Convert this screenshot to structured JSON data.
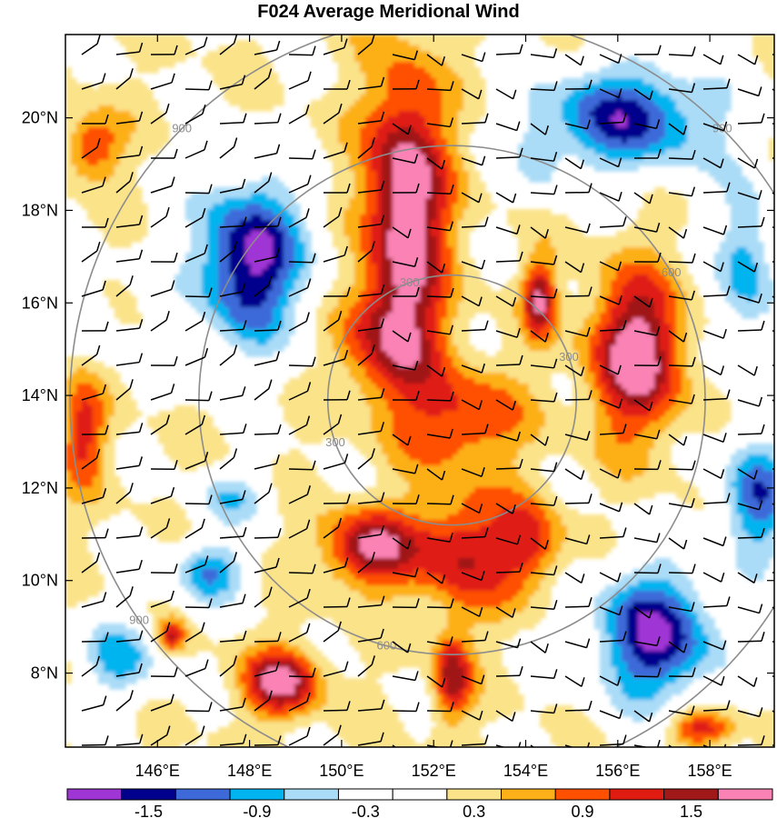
{
  "title": "F024 Average Meridional Wind",
  "map": {
    "lon_range": [
      144,
      159.4
    ],
    "lat_range": [
      6.4,
      21.8
    ],
    "lat_ticks": [
      {
        "value": 20,
        "label": "20°N"
      },
      {
        "value": 18,
        "label": "18°N"
      },
      {
        "value": 16,
        "label": "16°N"
      },
      {
        "value": 14,
        "label": "14°N"
      },
      {
        "value": 12,
        "label": "12°N"
      },
      {
        "value": 10,
        "label": "10°N"
      },
      {
        "value": 8,
        "label": "8°N"
      }
    ],
    "lon_ticks": [
      {
        "value": 146,
        "label": "146°E"
      },
      {
        "value": 148,
        "label": "148°E"
      },
      {
        "value": 150,
        "label": "150°E"
      },
      {
        "value": 152,
        "label": "152°E"
      },
      {
        "value": 154,
        "label": "154°E"
      },
      {
        "value": 156,
        "label": "156°E"
      },
      {
        "value": 158,
        "label": "158°E"
      }
    ],
    "range_rings": {
      "center": {
        "lon": 152.4,
        "lat": 13.9
      },
      "rings": [
        {
          "radius_deg": 2.7,
          "label": "300"
        },
        {
          "radius_deg": 5.5,
          "label": "600"
        },
        {
          "radius_deg": 8.3,
          "label": "900"
        }
      ],
      "ring_color": "#8c8c8c"
    },
    "wind_field": {
      "base_color": "#ffffff",
      "blobs": [
        {
          "lon": 151.4,
          "lat": 18.2,
          "amp": 1.9,
          "sx": 0.9,
          "sy": 2.8
        },
        {
          "lon": 151.0,
          "lat": 15.2,
          "amp": 1.1,
          "sx": 1.1,
          "sy": 1.3
        },
        {
          "lon": 152.6,
          "lat": 13.5,
          "amp": 1.0,
          "sx": 1.3,
          "sy": 1.1
        },
        {
          "lon": 150.6,
          "lat": 10.7,
          "amp": 1.55,
          "sx": 1.0,
          "sy": 0.8
        },
        {
          "lon": 152.6,
          "lat": 10.6,
          "amp": 1.2,
          "sx": 1.1,
          "sy": 1.3
        },
        {
          "lon": 154.1,
          "lat": 10.8,
          "amp": 1.0,
          "sx": 0.7,
          "sy": 1.0
        },
        {
          "lon": 156.4,
          "lat": 14.9,
          "amp": 1.8,
          "sx": 1.0,
          "sy": 1.7
        },
        {
          "lon": 154.3,
          "lat": 16.1,
          "amp": 1.5,
          "sx": 0.35,
          "sy": 0.8
        },
        {
          "lon": 148.7,
          "lat": 7.8,
          "amp": 1.7,
          "sx": 0.8,
          "sy": 0.7
        },
        {
          "lon": 152.4,
          "lat": 7.9,
          "amp": 1.4,
          "sx": 0.4,
          "sy": 0.9
        },
        {
          "lon": 146.3,
          "lat": 8.8,
          "amp": 1.2,
          "sx": 0.3,
          "sy": 0.35
        },
        {
          "lon": 144.4,
          "lat": 13.2,
          "amp": 1.0,
          "sx": 0.5,
          "sy": 1.2
        },
        {
          "lon": 144.6,
          "lat": 19.4,
          "amp": 1.0,
          "sx": 0.6,
          "sy": 0.7
        },
        {
          "lon": 157.8,
          "lat": 6.8,
          "amp": 1.2,
          "sx": 0.7,
          "sy": 0.4
        },
        {
          "lon": 148.0,
          "lat": 16.9,
          "amp": -1.9,
          "sx": 1.3,
          "sy": 1.8
        },
        {
          "lon": 156.2,
          "lat": 20.0,
          "amp": -1.6,
          "sx": 2.0,
          "sy": 1.2
        },
        {
          "lon": 156.8,
          "lat": 8.8,
          "amp": -1.8,
          "sx": 1.4,
          "sy": 1.5
        },
        {
          "lon": 159.0,
          "lat": 11.8,
          "amp": -1.4,
          "sx": 0.8,
          "sy": 1.4
        },
        {
          "lon": 158.8,
          "lat": 16.8,
          "amp": -1.1,
          "sx": 0.7,
          "sy": 2.0
        },
        {
          "lon": 147.1,
          "lat": 10.2,
          "amp": -1.2,
          "sx": 0.8,
          "sy": 0.7
        },
        {
          "lon": 145.2,
          "lat": 8.3,
          "amp": -1.0,
          "sx": 0.9,
          "sy": 0.9
        },
        {
          "lon": 147.6,
          "lat": 11.8,
          "amp": -0.8,
          "sx": 0.8,
          "sy": 0.6
        },
        {
          "lon": 154.3,
          "lat": 19.0,
          "amp": -0.5,
          "sx": 0.5,
          "sy": 0.9
        },
        {
          "lon": 144.6,
          "lat": 15.6,
          "amp": -0.4,
          "sx": 0.6,
          "sy": 1.0
        }
      ]
    },
    "wind_barb_color": "#000000"
  },
  "colorbar": {
    "colors": [
      "#a035d6",
      "#00008c",
      "#3e6ad9",
      "#00b4f0",
      "#aadcf7",
      "#ffffff",
      "#ffffff",
      "#fbe38a",
      "#fdb018",
      "#ff5000",
      "#e01b12",
      "#a01818",
      "#fa82b4"
    ],
    "tick_labels": [
      "-1.5",
      "-0.9",
      "-0.3",
      "0.3",
      "0.9",
      "1.5"
    ],
    "levels": [
      -1.8,
      -1.5,
      -1.2,
      -0.9,
      -0.6,
      -0.3,
      0.0,
      0.3,
      0.6,
      0.9,
      1.2,
      1.5,
      1.8
    ]
  }
}
